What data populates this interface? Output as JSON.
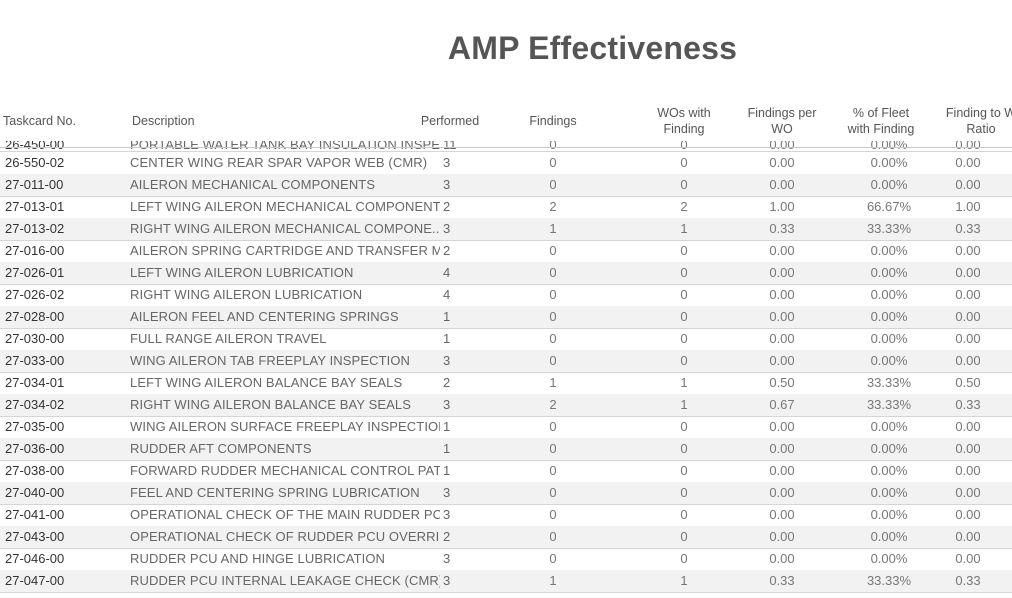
{
  "title": "AMP Effectiveness",
  "columns": {
    "taskcard": "Taskcard No.",
    "description": "Description",
    "performed": "Performed",
    "findings": "Findings",
    "wos_with_finding_1": "WOs with",
    "wos_with_finding_2": "Finding",
    "findings_per_wo_1": "Findings per",
    "findings_per_wo_2": "WO",
    "pct_fleet_1": "% of Fleet",
    "pct_fleet_2": "with Finding",
    "finding_ratio_1": "Finding to W",
    "finding_ratio_2": "Ratio"
  },
  "partial_row": {
    "taskcard": "26-450-00",
    "description": "PORTABLE WATER TANK BAY INSULATION INSPECTION",
    "performed": "11",
    "findings": "0",
    "wos": "0",
    "fpw": "0.00",
    "pct": "0.00%",
    "ratio": "0.00"
  },
  "rows": [
    {
      "taskcard": "26-550-02",
      "description": "CENTER WING REAR SPAR VAPOR WEB (CMR)",
      "performed": "3",
      "findings": "0",
      "wos": "0",
      "fpw": "0.00",
      "pct": "0.00%",
      "ratio": "0.00"
    },
    {
      "taskcard": "27-011-00",
      "description": "AILERON MECHANICAL COMPONENTS",
      "performed": "3",
      "findings": "0",
      "wos": "0",
      "fpw": "0.00",
      "pct": "0.00%",
      "ratio": "0.00"
    },
    {
      "taskcard": "27-013-01",
      "description": "LEFT WING AILERON MECHANICAL COMPONENTS",
      "performed": "2",
      "findings": "2",
      "wos": "2",
      "fpw": "1.00",
      "pct": "66.67%",
      "ratio": "1.00"
    },
    {
      "taskcard": "27-013-02",
      "description": "RIGHT WING AILERON MECHANICAL COMPONE..",
      "performed": "3",
      "findings": "1",
      "wos": "1",
      "fpw": "0.33",
      "pct": "33.33%",
      "ratio": "0.33"
    },
    {
      "taskcard": "27-016-00",
      "description": "AILERON SPRING CARTRIDGE AND TRANSFER M..",
      "performed": "2",
      "findings": "0",
      "wos": "0",
      "fpw": "0.00",
      "pct": "0.00%",
      "ratio": "0.00"
    },
    {
      "taskcard": "27-026-01",
      "description": "LEFT WING AILERON LUBRICATION",
      "performed": "4",
      "findings": "0",
      "wos": "0",
      "fpw": "0.00",
      "pct": "0.00%",
      "ratio": "0.00"
    },
    {
      "taskcard": "27-026-02",
      "description": "RIGHT WING AILERON LUBRICATION",
      "performed": "4",
      "findings": "0",
      "wos": "0",
      "fpw": "0.00",
      "pct": "0.00%",
      "ratio": "0.00"
    },
    {
      "taskcard": "27-028-00",
      "description": "AILERON FEEL AND CENTERING SPRINGS",
      "performed": "1",
      "findings": "0",
      "wos": "0",
      "fpw": "0.00",
      "pct": "0.00%",
      "ratio": "0.00"
    },
    {
      "taskcard": "27-030-00",
      "description": "FULL RANGE AILERON TRAVEL",
      "performed": "1",
      "findings": "0",
      "wos": "0",
      "fpw": "0.00",
      "pct": "0.00%",
      "ratio": "0.00"
    },
    {
      "taskcard": "27-033-00",
      "description": "WING AILERON TAB FREEPLAY INSPECTION",
      "performed": "3",
      "findings": "0",
      "wos": "0",
      "fpw": "0.00",
      "pct": "0.00%",
      "ratio": "0.00"
    },
    {
      "taskcard": "27-034-01",
      "description": "LEFT WING AILERON BALANCE BAY SEALS",
      "performed": "2",
      "findings": "1",
      "wos": "1",
      "fpw": "0.50",
      "pct": "33.33%",
      "ratio": "0.50"
    },
    {
      "taskcard": "27-034-02",
      "description": "RIGHT WING AILERON BALANCE BAY SEALS",
      "performed": "3",
      "findings": "2",
      "wos": "1",
      "fpw": "0.67",
      "pct": "33.33%",
      "ratio": "0.33"
    },
    {
      "taskcard": "27-035-00",
      "description": "WING AILERON SURFACE FREEPLAY INSPECTION",
      "performed": "1",
      "findings": "0",
      "wos": "0",
      "fpw": "0.00",
      "pct": "0.00%",
      "ratio": "0.00"
    },
    {
      "taskcard": "27-036-00",
      "description": "RUDDER AFT COMPONENTS",
      "performed": "1",
      "findings": "0",
      "wos": "0",
      "fpw": "0.00",
      "pct": "0.00%",
      "ratio": "0.00"
    },
    {
      "taskcard": "27-038-00",
      "description": "FORWARD RUDDER MECHANICAL CONTROL PATH",
      "performed": "1",
      "findings": "0",
      "wos": "0",
      "fpw": "0.00",
      "pct": "0.00%",
      "ratio": "0.00"
    },
    {
      "taskcard": "27-040-00",
      "description": "FEEL AND CENTERING SPRING LUBRICATION",
      "performed": "3",
      "findings": "0",
      "wos": "0",
      "fpw": "0.00",
      "pct": "0.00%",
      "ratio": "0.00"
    },
    {
      "taskcard": "27-041-00",
      "description": "OPERATIONAL CHECK OF THE MAIN RUDDER PC..",
      "performed": "3",
      "findings": "0",
      "wos": "0",
      "fpw": "0.00",
      "pct": "0.00%",
      "ratio": "0.00"
    },
    {
      "taskcard": "27-043-00",
      "description": "OPERATIONAL CHECK OF RUDDER PCU OVERRID..",
      "performed": "2",
      "findings": "0",
      "wos": "0",
      "fpw": "0.00",
      "pct": "0.00%",
      "ratio": "0.00"
    },
    {
      "taskcard": "27-046-00",
      "description": "RUDDER PCU AND HINGE LUBRICATION",
      "performed": "3",
      "findings": "0",
      "wos": "0",
      "fpw": "0.00",
      "pct": "0.00%",
      "ratio": "0.00"
    },
    {
      "taskcard": "27-047-00",
      "description": "RUDDER PCU INTERNAL LEAKAGE CHECK (CMR)",
      "performed": "3",
      "findings": "1",
      "wos": "1",
      "fpw": "0.33",
      "pct": "33.33%",
      "ratio": "0.33"
    }
  ]
}
